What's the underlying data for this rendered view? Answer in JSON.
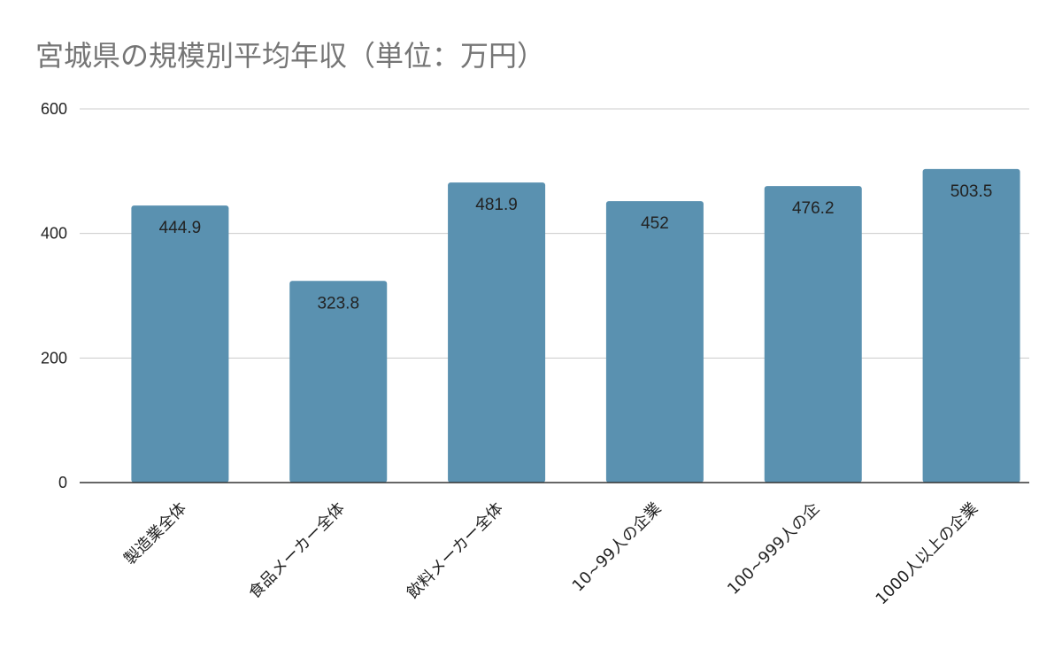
{
  "chart_data": {
    "type": "bar",
    "title": "宮城県の規模別平均年収（単位：万円）",
    "categories": [
      "製造業全体",
      "食品メーカー全体",
      "飲料メーカー全体",
      "10~99人の企業",
      "100~999人の企",
      "1000人以上の企業"
    ],
    "values": [
      444.9,
      323.8,
      481.9,
      452,
      476.2,
      503.5
    ],
    "value_labels": [
      "444.9",
      "323.8",
      "481.9",
      "452",
      "476.2",
      "503.5"
    ],
    "ylim": [
      0,
      600
    ],
    "yticks": [
      0,
      200,
      400,
      600
    ],
    "ytick_labels": [
      "0",
      "200",
      "400",
      "600"
    ],
    "xlabel": "",
    "ylabel": "",
    "grid": true,
    "bar_color": "#5a91b0"
  }
}
